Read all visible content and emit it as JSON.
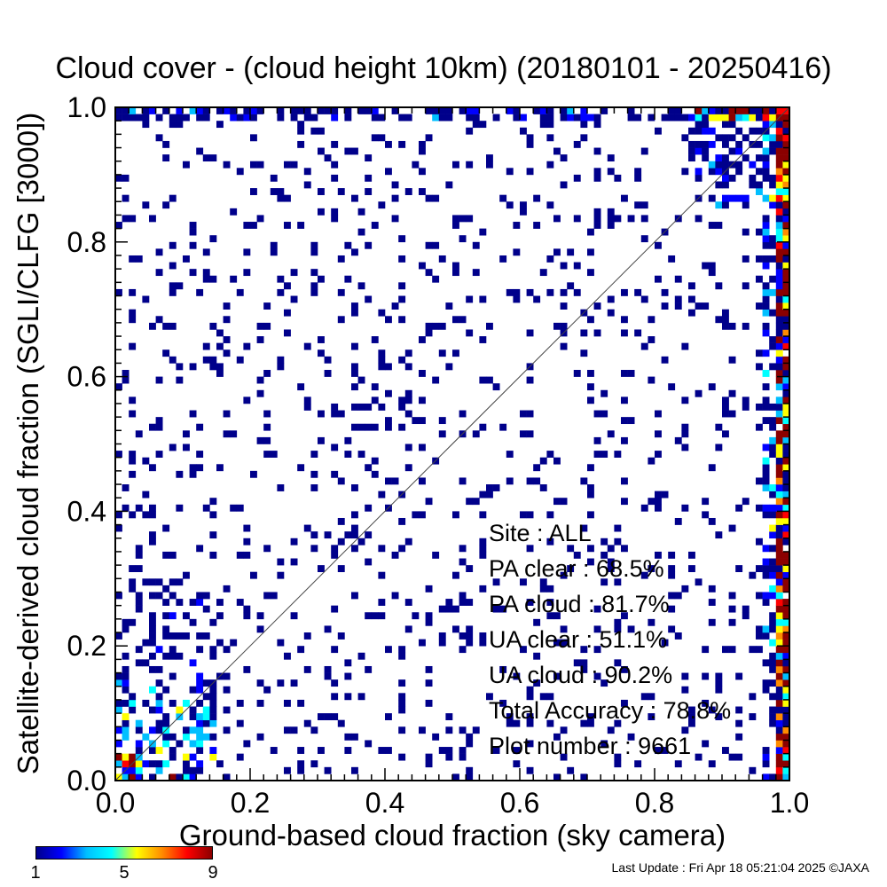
{
  "chart_data": {
    "type": "heatmap",
    "title": "Cloud cover - (cloud height 10km)  (20180101 - 20250416)",
    "xlabel": "Ground-based cloud fraction (sky camera)",
    "ylabel": "Satellite-derived cloud fraction (SGLI/CLFG [3000])",
    "xlim": [
      0.0,
      1.0
    ],
    "ylim": [
      0.0,
      1.0
    ],
    "x_ticks": [
      "0.0",
      "0.2",
      "0.4",
      "0.6",
      "0.8",
      "1.0"
    ],
    "y_ticks": [
      "0.0",
      "0.2",
      "0.4",
      "0.6",
      "0.8",
      "1.0"
    ],
    "bins": 100,
    "diagonal_line": true,
    "colorbar": {
      "min": 1,
      "max": 9,
      "tick_labels": [
        "1",
        "5",
        "9"
      ],
      "colors": [
        "#00008b",
        "#0000ff",
        "#00bfff",
        "#00ffff",
        "#ffff00",
        "#ff8c00",
        "#ff0000",
        "#8b0000"
      ]
    },
    "stats": {
      "site": "Site : ALL",
      "pa_clear": "PA clear :  68.5%",
      "pa_cloud": "PA cloud :  81.7%",
      "ua_clear": "UA clear :  51.1%",
      "ua_cloud": "UA cloud :  90.2%",
      "total_accuracy": "Total Accuracy :  78.8%",
      "plot_number": "Plot number :      9661"
    }
  },
  "footer": "Last Update : Fri Apr 18 05:21:04 2025  ©JAXA"
}
